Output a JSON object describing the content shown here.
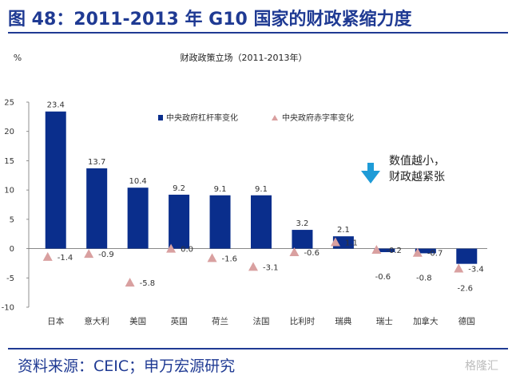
{
  "figure": {
    "title": "图 48：2011-2013 年 G10 国家的财政紧缩力度",
    "source": "资料来源：CEIC；申万宏源研究",
    "watermark": "格隆汇"
  },
  "colors": {
    "title": "#1f3a93",
    "bar": "#0a2e8c",
    "marker": "#d9a0a0"
  },
  "chart_data": {
    "type": "bar",
    "title": "财政政策立场（2011-2013年）",
    "ylabel": "%",
    "ylim": [
      -10,
      25
    ],
    "yticks": [
      25,
      20,
      15,
      10,
      5,
      0,
      -5,
      -10
    ],
    "grid": false,
    "legend_position": "top",
    "categories": [
      "日本",
      "意大利",
      "美国",
      "英国",
      "荷兰",
      "法国",
      "比利时",
      "瑞典",
      "瑞士",
      "加拿大",
      "德国"
    ],
    "series": [
      {
        "name": "中央政府杠杆率变化",
        "type": "bar",
        "values": [
          23.4,
          13.7,
          10.4,
          9.2,
          9.1,
          9.1,
          3.2,
          2.1,
          -0.6,
          -0.8,
          -2.6
        ],
        "labels": [
          "23.4",
          "13.7",
          "10.4",
          "9.2",
          "9.1",
          "9.1",
          "3.2",
          "2.1",
          "-0.6",
          "-0.8",
          "-2.6"
        ]
      },
      {
        "name": "中央政府赤字率变化",
        "type": "scatter",
        "values": [
          -1.4,
          -0.9,
          -5.8,
          0.0,
          -1.6,
          -3.1,
          -0.6,
          1.1,
          -0.2,
          -0.7,
          -3.4
        ],
        "labels": [
          "-1.4",
          "-0.9",
          "-5.8",
          "0.0",
          "-1.6",
          "-3.1",
          "-0.6",
          "1.1",
          "-0.2",
          "-0.7",
          "-3.4"
        ]
      }
    ],
    "annotation": {
      "icon": "down-arrow-icon",
      "lines": [
        "数值越小，",
        "财政越紧张"
      ],
      "arrow_color": "#1e9bd7"
    }
  }
}
